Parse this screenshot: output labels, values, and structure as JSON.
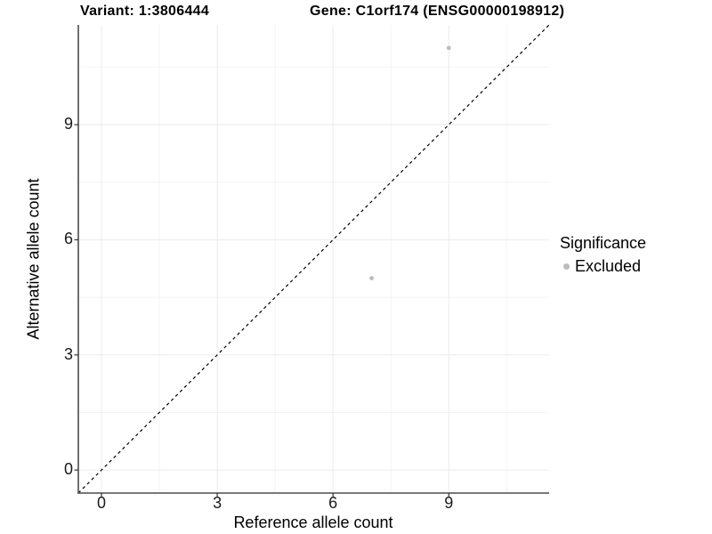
{
  "chart_data": {
    "type": "scatter",
    "title_variant": "Variant: 1:3806444",
    "title_gene": "Gene: C1orf174 (ENSG00000198912)",
    "xlabel": "Reference allele count",
    "ylabel": "Alternative allele count",
    "xlim": [
      -0.6,
      11.6
    ],
    "ylim": [
      -0.6,
      11.6
    ],
    "x_ticks": [
      0,
      3,
      6,
      9
    ],
    "y_ticks": [
      0,
      3,
      6,
      9
    ],
    "x_minor": [
      1.5,
      4.5,
      7.5,
      10.5
    ],
    "y_minor": [
      1.5,
      4.5,
      7.5,
      10.5
    ],
    "grid": true,
    "series": [
      {
        "name": "Excluded",
        "color": "#bdbdbd",
        "points": [
          {
            "x": 9,
            "y": 11
          },
          {
            "x": 7,
            "y": 5
          }
        ]
      }
    ],
    "identity_line": {
      "style": "dashed",
      "color": "#000000",
      "from": [
        -0.6,
        -0.6
      ],
      "to": [
        11.6,
        11.6
      ]
    },
    "legend": {
      "title": "Significance",
      "position": "right",
      "entries": [
        {
          "label": "Excluded",
          "color": "#bdbdbd"
        }
      ]
    },
    "colors": {
      "background": "#ffffff",
      "grid_major": "#ebebeb",
      "grid_minor": "#f4f4f4",
      "axis_line": "#4d4d4d",
      "tick_mark": "#333333",
      "tick_text": "#1a1a1a",
      "title_text": "#000000"
    }
  }
}
